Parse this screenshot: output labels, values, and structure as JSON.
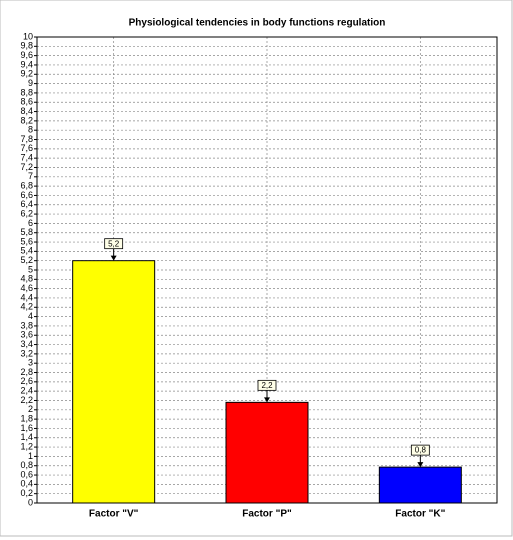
{
  "chart_data": {
    "type": "bar",
    "title": "Physiological tendencies in body functions regulation",
    "categories": [
      "Factor \"V\"",
      "Factor \"P\"",
      "Factor \"K\""
    ],
    "values": [
      5.2,
      2.16,
      0.77
    ],
    "value_labels": [
      "5,2",
      "2,2",
      "0,8"
    ],
    "colors": [
      "#ffff00",
      "#ff0000",
      "#0000ff"
    ],
    "ylim": [
      0,
      10
    ],
    "yticks": [
      0,
      {
        "value": 0.2,
        "label": "0,2"
      },
      {
        "value": 0.4,
        "label": "0,4"
      },
      {
        "value": 0.6,
        "label": "0,6"
      },
      {
        "value": 0.8,
        "label": "0,8"
      },
      1,
      {
        "value": 1.2,
        "label": "1,2"
      },
      {
        "value": 1.4,
        "label": "1,4"
      },
      {
        "value": 1.6,
        "label": "1,6"
      },
      {
        "value": 1.8,
        "label": "1,8"
      },
      2,
      {
        "value": 2.2,
        "label": "2,2"
      },
      {
        "value": 2.4,
        "label": "2,4"
      },
      {
        "value": 2.6,
        "label": "2,6"
      },
      {
        "value": 2.8,
        "label": "2,8"
      },
      3,
      {
        "value": 3.2,
        "label": "3,2"
      },
      {
        "value": 3.4,
        "label": "3,4"
      },
      {
        "value": 3.6,
        "label": "3,6"
      },
      {
        "value": 3.8,
        "label": "3,8"
      },
      4,
      {
        "value": 4.2,
        "label": "4,2"
      },
      {
        "value": 4.4,
        "label": "4,4"
      },
      {
        "value": 4.6,
        "label": "4,6"
      },
      {
        "value": 4.8,
        "label": "4,8"
      },
      5,
      {
        "value": 5.2,
        "label": "5,2"
      },
      {
        "value": 5.4,
        "label": "5,4"
      },
      {
        "value": 5.6,
        "label": "5,6"
      },
      {
        "value": 5.8,
        "label": "5,8"
      },
      6,
      {
        "value": 6.2,
        "label": "6,2"
      },
      {
        "value": 6.4,
        "label": "6,4"
      },
      {
        "value": 6.6,
        "label": "6,6"
      },
      {
        "value": 6.8,
        "label": "6,8"
      },
      7,
      {
        "value": 7.2,
        "label": "7,2"
      },
      {
        "value": 7.4,
        "label": "7,4"
      },
      {
        "value": 7.6,
        "label": "7,6"
      },
      {
        "value": 7.8,
        "label": "7,8"
      },
      8,
      {
        "value": 8.2,
        "label": "8,2"
      },
      {
        "value": 8.4,
        "label": "8,4"
      },
      {
        "value": 8.6,
        "label": "8,6"
      },
      {
        "value": 8.8,
        "label": "8,8"
      },
      9,
      {
        "value": 9.2,
        "label": "9,2"
      },
      {
        "value": 9.4,
        "label": "9,4"
      },
      {
        "value": 9.6,
        "label": "9,6"
      },
      {
        "value": 9.8,
        "label": "9,8"
      },
      10
    ],
    "grid": true
  }
}
